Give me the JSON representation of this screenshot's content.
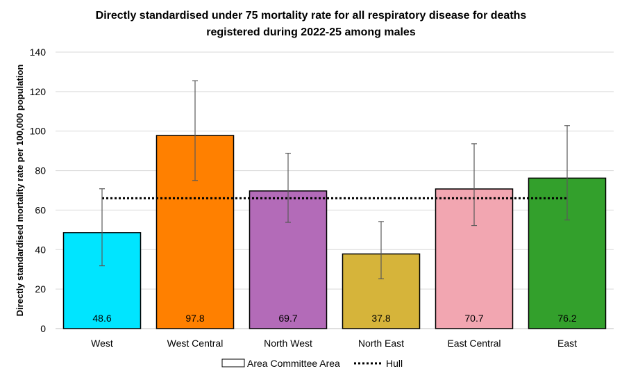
{
  "chart_data": {
    "type": "bar",
    "title_line1": "Directly standardised under 75 mortality rate for all respiratory disease for deaths",
    "title_line2": "registered during 2022-25 among males",
    "ylabel": "Directly standardised mortality rate per 100,000 population",
    "xlabel": "",
    "ylim": [
      0,
      140
    ],
    "yticks": [
      0,
      20,
      40,
      60,
      80,
      100,
      120,
      140
    ],
    "categories": [
      "West",
      "West Central",
      "North West",
      "North East",
      "East Central",
      "East"
    ],
    "values": [
      48.6,
      97.8,
      69.7,
      37.8,
      70.7,
      76.2
    ],
    "value_labels": [
      "48.6",
      "97.8",
      "69.7",
      "37.8",
      "70.7",
      "76.2"
    ],
    "error_lower": [
      31.8,
      75.0,
      53.8,
      25.2,
      52.2,
      55.0
    ],
    "error_upper": [
      70.8,
      125.5,
      88.8,
      54.2,
      93.6,
      102.8
    ],
    "bar_colors": [
      "#00e5ff",
      "#ff8000",
      "#b36bb8",
      "#d6b43a",
      "#f2a6b1",
      "#33a02c"
    ],
    "reference_line": {
      "name": "Hull",
      "value": 66.0,
      "style": "dotted",
      "color": "#000000"
    },
    "grid": true,
    "gridline_color": "#d9d9d9",
    "legend": {
      "placement": "bottom-center",
      "entries": [
        "Area Committee Area",
        "Hull"
      ]
    }
  }
}
